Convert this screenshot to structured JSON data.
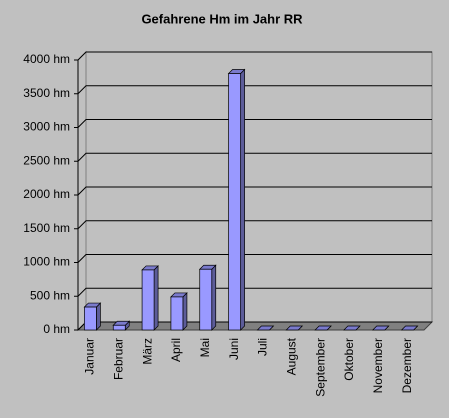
{
  "chart_data": {
    "type": "bar",
    "title": "Gefahrene Hm im Jahr RR",
    "categories": [
      "Januar",
      "Februar",
      "März",
      "April",
      "Mai",
      "Juni",
      "Juli",
      "August",
      "September",
      "Oktober",
      "November",
      "Dezember"
    ],
    "values": [
      340,
      70,
      890,
      490,
      900,
      3800,
      0,
      0,
      0,
      0,
      0,
      0
    ],
    "color": "#9999ff",
    "ylim": [
      0,
      4000
    ],
    "yticks": [
      {
        "value": 0,
        "label": "0 hm"
      },
      {
        "value": 500,
        "label": "500 hm"
      },
      {
        "value": 1000,
        "label": "1000 hm"
      },
      {
        "value": 1500,
        "label": "1500 hm"
      },
      {
        "value": 2000,
        "label": "2000 hm"
      },
      {
        "value": 2500,
        "label": "2500 hm"
      },
      {
        "value": 3000,
        "label": "3000 hm"
      },
      {
        "value": 3500,
        "label": "3500 hm"
      },
      {
        "value": 4000,
        "label": "4000 hm"
      }
    ],
    "grid": true
  }
}
